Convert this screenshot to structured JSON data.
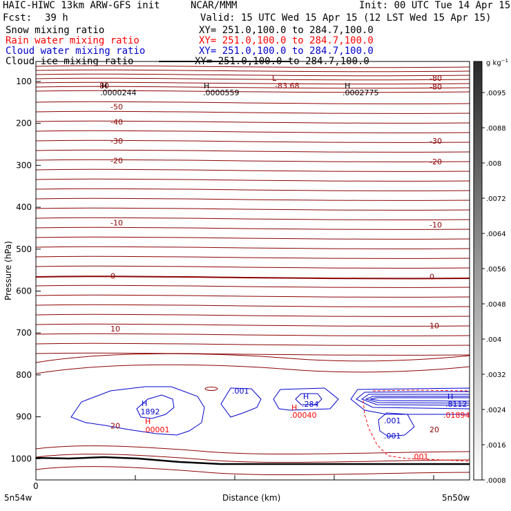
{
  "header": {
    "title_left": "HAIC-HIWC 13km ARW-GFS init",
    "org": "NCAR/MMM",
    "init": "Init: 00 UTC Tue 14 Apr 15",
    "fcst_label": "Fcst:",
    "fcst_value": "39 h",
    "valid": "Valid: 15 UTC Wed 15 Apr 15 (12 LST Wed 15 Apr 15)"
  },
  "fields": [
    {
      "name": "Snow mixing ratio",
      "xy": "XY= 251.0,100.0 to 284.7,100.0",
      "color": "#000000"
    },
    {
      "name": "Rain water mixing ratio",
      "xy": "XY= 251.0,100.0 to 284.7,100.0",
      "color": "#ff0000"
    },
    {
      "name": "Cloud water mixing ratio",
      "xy": "XY= 251.0,100.0 to 284.7,100.0",
      "color": "#0000cc"
    },
    {
      "name": "Cloud ice mixing ratio",
      "xy": "XY= 251.0,100.0 to 284.7,100.0",
      "color": "#000000"
    }
  ],
  "axes": {
    "ylabel": "Pressure (hPa)",
    "xlabel": "Distance (km)",
    "x_tick": "0",
    "x_left": "5n54w",
    "x_right": "5n50w"
  },
  "colorbar": {
    "unit": "g kg",
    "unit_sup": "−1",
    "labels": [
      ".0095",
      ".0088",
      ".008",
      ".0072",
      ".0064",
      ".0056",
      ".0048",
      ".004",
      ".0032",
      ".0024",
      ".0016",
      ".0008"
    ]
  },
  "colors": {
    "temperature": "#8b0000",
    "rain": "#ff0000",
    "cloud": "#0000cc",
    "frame": "#000000"
  },
  "chart_data": {
    "type": "contour",
    "ylim": [
      1050,
      70
    ],
    "yticks": [
      100,
      200,
      300,
      400,
      500,
      600,
      700,
      800,
      900,
      1000
    ],
    "temperature_isotherm_labels": [
      {
        "v": "-80",
        "p": 92,
        "side": "right"
      },
      {
        "v": "-80",
        "p": 112,
        "side": "right"
      },
      {
        "v": "-80",
        "p": 110,
        "side": "left"
      },
      {
        "v": "-50",
        "p": 160,
        "side": "left"
      },
      {
        "v": "-40",
        "p": 196,
        "side": "left"
      },
      {
        "v": "-30",
        "p": 242,
        "side": "left"
      },
      {
        "v": "-30",
        "p": 242,
        "side": "right"
      },
      {
        "v": "-20",
        "p": 289,
        "side": "left"
      },
      {
        "v": "-20",
        "p": 291,
        "side": "right"
      },
      {
        "v": "-10",
        "p": 437,
        "side": "left"
      },
      {
        "v": "-10",
        "p": 442,
        "side": "right"
      },
      {
        "v": "0",
        "p": 564,
        "side": "left"
      },
      {
        "v": "0",
        "p": 565,
        "side": "right"
      },
      {
        "v": "10",
        "p": 690,
        "side": "left"
      },
      {
        "v": "10",
        "p": 682,
        "side": "right"
      },
      {
        "v": "20",
        "p": 921,
        "side": "left"
      },
      {
        "v": "20",
        "p": 930,
        "side": "right"
      }
    ],
    "extrema": [
      {
        "text": "H",
        "value": ".0000244",
        "color": "black"
      },
      {
        "text": "H",
        "value": ".0000559",
        "color": "black"
      },
      {
        "text": "L",
        "value": "-83.68",
        "color": "darkred"
      },
      {
        "text": "H",
        "value": ".0002775",
        "color": "black"
      },
      {
        "text": "H",
        "value": ".1892",
        "color": "blue"
      },
      {
        "text": "H",
        "value": ".00001",
        "color": "red"
      },
      {
        "text": "H",
        "value": ".284",
        "color": "blue"
      },
      {
        "text": "H",
        "value": ".00040",
        "color": "red"
      },
      {
        "text": "H",
        "value": ".8112",
        "color": "blue"
      },
      {
        "text": "H",
        "value": ".01894",
        "color": "red"
      }
    ],
    "contour_labels": [
      {
        "value": ".001",
        "color": "blue"
      },
      {
        "value": ".001",
        "color": "blue"
      },
      {
        "value": ".001",
        "color": "blue"
      },
      {
        "value": ".001",
        "color": "red"
      }
    ]
  }
}
